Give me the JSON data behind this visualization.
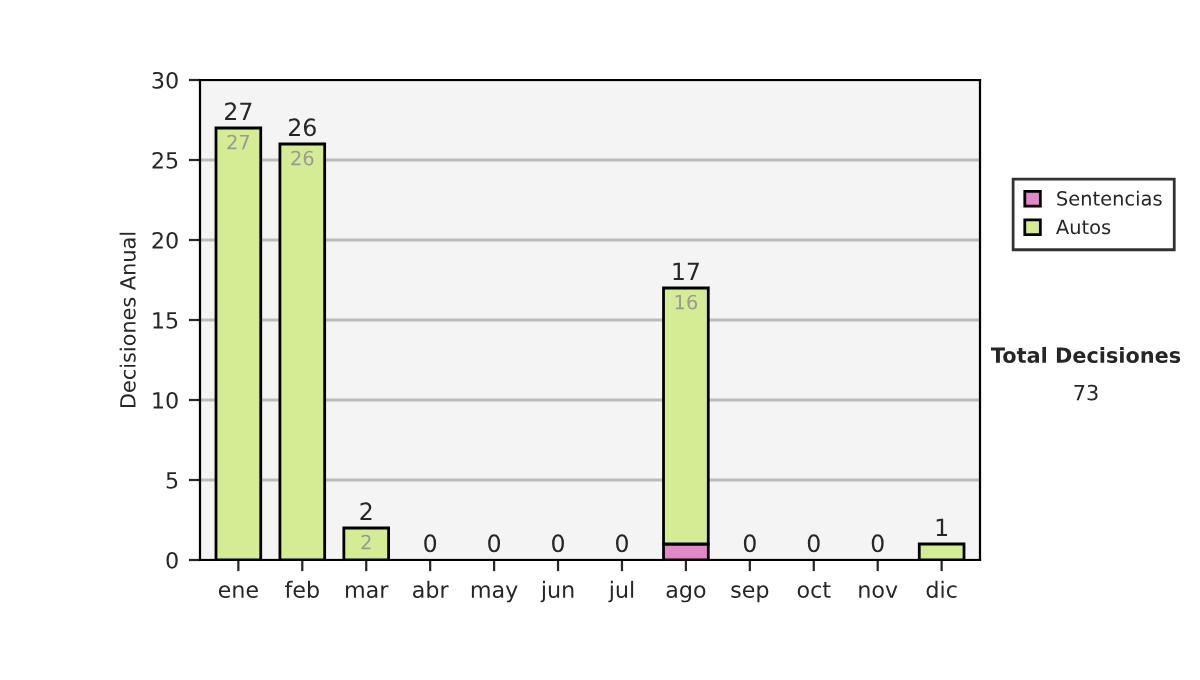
{
  "chart_data": {
    "type": "bar",
    "stacked": true,
    "ylabel": "Decisiones Anual",
    "categories": [
      "ene",
      "feb",
      "mar",
      "abr",
      "may",
      "jun",
      "jul",
      "ago",
      "sep",
      "oct",
      "nov",
      "dic"
    ],
    "series": [
      {
        "name": "Sentencias",
        "color": "#e088c8",
        "values": [
          0,
          0,
          0,
          0,
          0,
          0,
          0,
          1,
          0,
          0,
          0,
          0
        ]
      },
      {
        "name": "Autos",
        "color": "#d4ec94",
        "values": [
          27,
          26,
          2,
          0,
          0,
          0,
          0,
          16,
          0,
          0,
          0,
          1
        ],
        "value_labels": [
          "27",
          "26",
          "2",
          null,
          null,
          null,
          null,
          "16",
          null,
          null,
          null,
          null
        ]
      }
    ],
    "totals": [
      "27",
      "26",
      "2",
      "0",
      "0",
      "0",
      "0",
      "17",
      "0",
      "0",
      "0",
      "1"
    ],
    "ylim": [
      0,
      30
    ],
    "yticks": [
      0,
      5,
      10,
      15,
      20,
      25,
      30
    ],
    "grid": "y",
    "legend": "right",
    "annotations": [
      "Total Decisiones",
      "73"
    ]
  }
}
